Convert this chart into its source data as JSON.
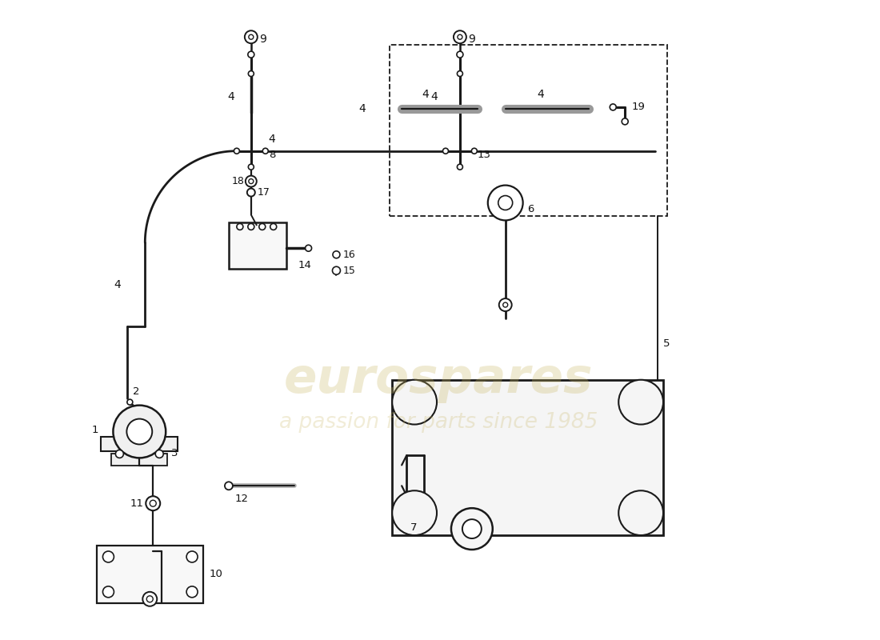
{
  "bg_color": "#ffffff",
  "line_color": "#222222",
  "lc": "#1a1a1a",
  "wm_color": "#c8b560",
  "wm_alpha": 0.3,
  "fig_w": 11.0,
  "fig_h": 8.0,
  "dpi": 100
}
